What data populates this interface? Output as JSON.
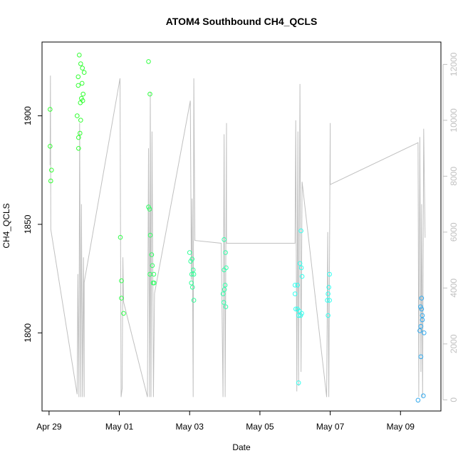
{
  "chart_data": {
    "type": "scatter",
    "title": "ATOM4 Southbound CH4_QCLS",
    "xlabel": "Date",
    "ylabel": "CH4_QCLS",
    "xlim": [
      -0.2,
      11.15
    ],
    "ylim": [
      1764,
      1934
    ],
    "y2lim": [
      -400,
      12800
    ],
    "x_ticks": [
      {
        "value": 0,
        "label": "Apr 29"
      },
      {
        "value": 2,
        "label": "May 01"
      },
      {
        "value": 4,
        "label": "May 03"
      },
      {
        "value": 6,
        "label": "May 05"
      },
      {
        "value": 8,
        "label": "May 07"
      },
      {
        "value": 10,
        "label": "May 09"
      }
    ],
    "y_ticks": [
      {
        "value": 1800,
        "label": "1800"
      },
      {
        "value": 1850,
        "label": "1850"
      },
      {
        "value": 1900,
        "label": "1900"
      }
    ],
    "y2_ticks": [
      {
        "value": 0,
        "label": "0"
      },
      {
        "value": 2000,
        "label": "2000"
      },
      {
        "value": 4000,
        "label": "4000"
      },
      {
        "value": 6000,
        "label": "6000"
      },
      {
        "value": 8000,
        "label": "8000"
      },
      {
        "value": 10000,
        "label": "10000"
      },
      {
        "value": 12000,
        "label": "12000"
      }
    ],
    "colors": {
      "altitude_line": "#c0c0c0",
      "axis": "#000000",
      "secondary_axis": "#c0c0c0"
    },
    "points": [
      {
        "x": 0.03,
        "y": 1903,
        "color": "#33ff33"
      },
      {
        "x": 0.03,
        "y": 1886,
        "color": "#33ff33"
      },
      {
        "x": 0.07,
        "y": 1875,
        "color": "#33ff33"
      },
      {
        "x": 0.05,
        "y": 1870,
        "color": "#33ff33"
      },
      {
        "x": 0.86,
        "y": 1928,
        "color": "#33ff33"
      },
      {
        "x": 0.9,
        "y": 1924,
        "color": "#33ff33"
      },
      {
        "x": 0.95,
        "y": 1922,
        "color": "#33ff33"
      },
      {
        "x": 1.0,
        "y": 1920,
        "color": "#33ff33"
      },
      {
        "x": 0.83,
        "y": 1918,
        "color": "#33ff33"
      },
      {
        "x": 0.94,
        "y": 1915,
        "color": "#33ff33"
      },
      {
        "x": 0.83,
        "y": 1914,
        "color": "#33ff33"
      },
      {
        "x": 0.97,
        "y": 1910,
        "color": "#33ff33"
      },
      {
        "x": 0.92,
        "y": 1908,
        "color": "#33ff33"
      },
      {
        "x": 0.96,
        "y": 1907,
        "color": "#33ff33"
      },
      {
        "x": 0.89,
        "y": 1906,
        "color": "#33ff33"
      },
      {
        "x": 0.8,
        "y": 1900,
        "color": "#33ff33"
      },
      {
        "x": 0.9,
        "y": 1898,
        "color": "#33ff33"
      },
      {
        "x": 0.88,
        "y": 1892,
        "color": "#33ff33"
      },
      {
        "x": 0.84,
        "y": 1890,
        "color": "#33ff33"
      },
      {
        "x": 0.84,
        "y": 1885,
        "color": "#33ff33"
      },
      {
        "x": 2.03,
        "y": 1844,
        "color": "#33ff4d"
      },
      {
        "x": 2.06,
        "y": 1824,
        "color": "#33ff4d"
      },
      {
        "x": 2.06,
        "y": 1816,
        "color": "#33ff4d"
      },
      {
        "x": 2.12,
        "y": 1809,
        "color": "#33ff4d"
      },
      {
        "x": 2.83,
        "y": 1925,
        "color": "#33ff44"
      },
      {
        "x": 2.87,
        "y": 1910,
        "color": "#33ff44"
      },
      {
        "x": 2.83,
        "y": 1858,
        "color": "#33ff66"
      },
      {
        "x": 2.86,
        "y": 1857,
        "color": "#33ff66"
      },
      {
        "x": 2.88,
        "y": 1845,
        "color": "#33ff66"
      },
      {
        "x": 2.92,
        "y": 1836,
        "color": "#33ff66"
      },
      {
        "x": 2.94,
        "y": 1831,
        "color": "#33ff66"
      },
      {
        "x": 2.87,
        "y": 1827,
        "color": "#33ff66"
      },
      {
        "x": 2.98,
        "y": 1827,
        "color": "#33ff66"
      },
      {
        "x": 2.96,
        "y": 1823,
        "color": "#33ff66"
      },
      {
        "x": 2.99,
        "y": 1823,
        "color": "#33ff66"
      },
      {
        "x": 4.0,
        "y": 1837,
        "color": "#33ff99"
      },
      {
        "x": 4.07,
        "y": 1834,
        "color": "#33ff99"
      },
      {
        "x": 4.03,
        "y": 1833,
        "color": "#33ff99"
      },
      {
        "x": 4.1,
        "y": 1829,
        "color": "#33ff99"
      },
      {
        "x": 4.06,
        "y": 1827,
        "color": "#33ff99"
      },
      {
        "x": 4.12,
        "y": 1827,
        "color": "#33ff99"
      },
      {
        "x": 4.05,
        "y": 1823,
        "color": "#33ff99"
      },
      {
        "x": 4.08,
        "y": 1821,
        "color": "#33ff99"
      },
      {
        "x": 4.12,
        "y": 1815,
        "color": "#33ff99"
      },
      {
        "x": 4.98,
        "y": 1843,
        "color": "#33ffaa"
      },
      {
        "x": 5.02,
        "y": 1837,
        "color": "#33ffaa"
      },
      {
        "x": 5.04,
        "y": 1830,
        "color": "#33ffaa"
      },
      {
        "x": 4.98,
        "y": 1829,
        "color": "#33ffaa"
      },
      {
        "x": 5.01,
        "y": 1822,
        "color": "#33ffaa"
      },
      {
        "x": 4.99,
        "y": 1820,
        "color": "#33ffaa"
      },
      {
        "x": 4.95,
        "y": 1818,
        "color": "#33ffaa"
      },
      {
        "x": 4.97,
        "y": 1814,
        "color": "#33ffaa"
      },
      {
        "x": 5.03,
        "y": 1812,
        "color": "#33ffaa"
      },
      {
        "x": 7.17,
        "y": 1847,
        "color": "#33ffee"
      },
      {
        "x": 7.14,
        "y": 1832,
        "color": "#33ffee"
      },
      {
        "x": 7.18,
        "y": 1830,
        "color": "#33ffee"
      },
      {
        "x": 7.2,
        "y": 1826,
        "color": "#33ffee"
      },
      {
        "x": 7.0,
        "y": 1822,
        "color": "#33ffee"
      },
      {
        "x": 7.07,
        "y": 1822,
        "color": "#33ffee"
      },
      {
        "x": 7.0,
        "y": 1818,
        "color": "#33ffee"
      },
      {
        "x": 7.02,
        "y": 1811,
        "color": "#33ffee"
      },
      {
        "x": 7.07,
        "y": 1811,
        "color": "#33ffee"
      },
      {
        "x": 7.12,
        "y": 1810,
        "color": "#33ffee"
      },
      {
        "x": 7.1,
        "y": 1808,
        "color": "#33ffee"
      },
      {
        "x": 7.16,
        "y": 1808,
        "color": "#33ffee"
      },
      {
        "x": 7.19,
        "y": 1809,
        "color": "#33ffee"
      },
      {
        "x": 7.1,
        "y": 1777,
        "color": "#33ffee"
      },
      {
        "x": 7.98,
        "y": 1827,
        "color": "#33fff0"
      },
      {
        "x": 7.96,
        "y": 1821,
        "color": "#33fff0"
      },
      {
        "x": 7.94,
        "y": 1818,
        "color": "#33fff0"
      },
      {
        "x": 7.98,
        "y": 1815,
        "color": "#33fff0"
      },
      {
        "x": 7.92,
        "y": 1815,
        "color": "#33fff0"
      },
      {
        "x": 7.94,
        "y": 1808,
        "color": "#33fff0"
      },
      {
        "x": 10.6,
        "y": 1816,
        "color": "#33aaee"
      },
      {
        "x": 10.57,
        "y": 1812,
        "color": "#33aaee"
      },
      {
        "x": 10.6,
        "y": 1811,
        "color": "#33aaee"
      },
      {
        "x": 10.62,
        "y": 1806,
        "color": "#33aaee"
      },
      {
        "x": 10.62,
        "y": 1808,
        "color": "#33aaee"
      },
      {
        "x": 10.58,
        "y": 1803,
        "color": "#33aaee"
      },
      {
        "x": 10.55,
        "y": 1801,
        "color": "#33aaee"
      },
      {
        "x": 10.67,
        "y": 1800,
        "color": "#33aaee"
      },
      {
        "x": 10.58,
        "y": 1789,
        "color": "#33aaee"
      },
      {
        "x": 10.5,
        "y": 1769,
        "color": "#33aaee"
      },
      {
        "x": 10.65,
        "y": 1771,
        "color": "#33aaee"
      }
    ],
    "altitude_line": [
      [
        0.03,
        8400
      ],
      [
        0.04,
        11600
      ],
      [
        0.05,
        6100
      ],
      [
        0.8,
        200
      ],
      [
        0.82,
        4500
      ],
      [
        0.85,
        100
      ],
      [
        0.87,
        9900
      ],
      [
        0.9,
        100
      ],
      [
        0.92,
        7000
      ],
      [
        0.95,
        100
      ],
      [
        0.98,
        5100
      ],
      [
        1.0,
        100
      ],
      [
        1.0,
        4200
      ],
      [
        2.02,
        11500
      ],
      [
        2.05,
        100
      ],
      [
        2.08,
        400
      ],
      [
        2.1,
        5100
      ],
      [
        2.12,
        3500
      ],
      [
        2.8,
        100
      ],
      [
        2.83,
        9000
      ],
      [
        2.86,
        100
      ],
      [
        2.88,
        11000
      ],
      [
        2.9,
        100
      ],
      [
        2.93,
        9600
      ],
      [
        2.97,
        100
      ],
      [
        3.0,
        3800
      ],
      [
        4.02,
        10700
      ],
      [
        4.05,
        4300
      ],
      [
        4.07,
        7200
      ],
      [
        4.1,
        100
      ],
      [
        4.12,
        11500
      ],
      [
        4.15,
        5700
      ],
      [
        4.9,
        5600
      ],
      [
        4.95,
        100
      ],
      [
        4.98,
        9500
      ],
      [
        5.01,
        100
      ],
      [
        5.05,
        9900
      ],
      [
        5.05,
        5600
      ],
      [
        7.0,
        5600
      ],
      [
        7.02,
        10000
      ],
      [
        7.05,
        300
      ],
      [
        7.08,
        9600
      ],
      [
        7.1,
        500
      ],
      [
        7.14,
        11300
      ],
      [
        7.17,
        1000
      ],
      [
        7.2,
        7800
      ],
      [
        7.9,
        100
      ],
      [
        7.93,
        6000
      ],
      [
        7.96,
        100
      ],
      [
        8.0,
        9900
      ],
      [
        8.0,
        7700
      ],
      [
        10.5,
        9200
      ],
      [
        10.52,
        100
      ],
      [
        10.55,
        9400
      ],
      [
        10.58,
        1000
      ],
      [
        10.6,
        7000
      ],
      [
        10.63,
        100
      ],
      [
        10.66,
        9700
      ],
      [
        10.7,
        5800
      ]
    ]
  }
}
